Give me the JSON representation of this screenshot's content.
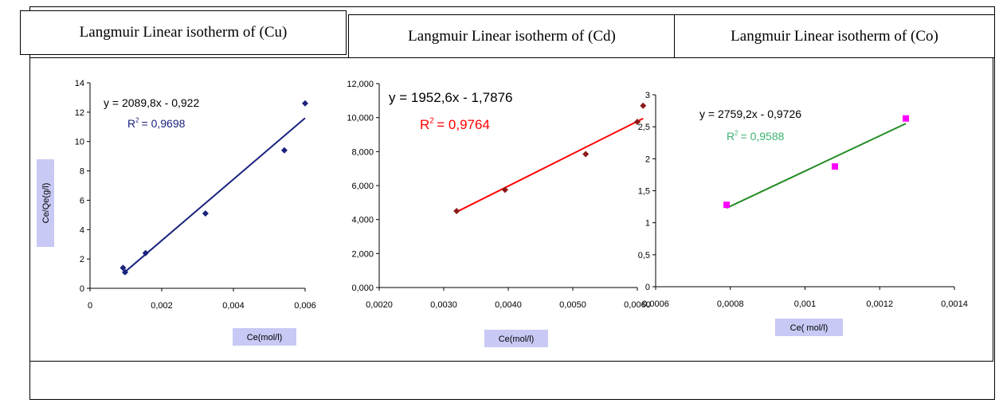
{
  "titles": {
    "cu": "Langmuir Linear isotherm of (Cu)",
    "cd": "Langmuir Linear isotherm of (Cd)",
    "co": "Langmuir Linear isotherm of (Co)"
  },
  "chart_data": [
    {
      "type": "scatter",
      "title": "Langmuir Linear isotherm of (Cu)",
      "xlabel": "Ce(mol/l)",
      "ylabel": "Ce/Qe(g/l)",
      "xlim": [
        0,
        0.006
      ],
      "ylim": [
        0,
        14
      ],
      "xticks": [
        0,
        0.002,
        0.004,
        0.006
      ],
      "xtick_labels": [
        "0",
        "0,002",
        "0,004",
        "0,006"
      ],
      "yticks": [
        0,
        2,
        4,
        6,
        8,
        10,
        12,
        14
      ],
      "ytick_labels": [
        "0",
        "2",
        "4",
        "6",
        "8",
        "10",
        "12",
        "14"
      ],
      "series": [
        {
          "x": [
            0.00092,
            0.00098,
            0.00155,
            0.00322,
            0.00542,
            0.006
          ],
          "y": [
            1.4,
            1.1,
            2.4,
            5.1,
            9.4,
            12.6
          ]
        }
      ],
      "trendline": {
        "x": [
          0.00092,
          0.006
        ],
        "y": [
          1.0,
          11.6
        ]
      },
      "equation": "y = 2089,8x - 0,922",
      "r2_label": "R",
      "r2_exponent": "2",
      "r2_value": "= 0,9698",
      "colors": {
        "marker": "#1a237e",
        "line": "#1a237e",
        "equation": "#000000",
        "r2": "#1a237e"
      }
    },
    {
      "type": "scatter",
      "title": "Langmuir Linear isotherm of (Cd)",
      "xlabel": "Ce(mol/l)",
      "xlim": [
        0.002,
        0.006
      ],
      "ylim": [
        0,
        12000
      ],
      "xticks": [
        0.002,
        0.003,
        0.004,
        0.005,
        0.006
      ],
      "xtick_labels": [
        "0,0020",
        "0,0030",
        "0,0040",
        "0,0050",
        "0,0060"
      ],
      "yticks": [
        0,
        2000,
        4000,
        6000,
        8000,
        10000,
        12000
      ],
      "ytick_labels": [
        "0,000",
        "2,000",
        "4,000",
        "6,000",
        "8,000",
        "10,000",
        "12,000"
      ],
      "series": [
        {
          "x": [
            0.0032,
            0.00395,
            0.0052,
            0.006,
            0.00609
          ],
          "y": [
            4500,
            5750,
            7850,
            9750,
            10700
          ]
        }
      ],
      "trendline": {
        "x": [
          0.0032,
          0.00609
        ],
        "y": [
          4450,
          9950
        ]
      },
      "equation": "y = 1952,6x - 1,7876",
      "r2_label": "R",
      "r2_exponent": "2",
      "r2_value": "= 0,9764",
      "colors": {
        "marker": "#8b1a1a",
        "line": "#ff0000",
        "equation": "#000000",
        "r2": "#ff0000"
      }
    },
    {
      "type": "scatter",
      "title": "Langmuir Linear isotherm of (Co)",
      "xlabel": "Ce( mol/l)",
      "xlim": [
        0.0006,
        0.0014
      ],
      "ylim": [
        0,
        3
      ],
      "xticks": [
        0.0006,
        0.0008,
        0.001,
        0.0012,
        0.0014
      ],
      "xtick_labels": [
        "0,0006",
        "0,0008",
        "0,001",
        "0,0012",
        "0,0014"
      ],
      "yticks": [
        0,
        0.5,
        1,
        1.5,
        2,
        2.5,
        3
      ],
      "ytick_labels": [
        "0",
        "0,5",
        "1",
        "1,5",
        "2",
        "2,5",
        "3"
      ],
      "series": [
        {
          "x": [
            0.00079,
            0.00108,
            0.00127
          ],
          "y": [
            1.28,
            1.88,
            2.63
          ]
        }
      ],
      "trendline": {
        "x": [
          0.00079,
          0.00127
        ],
        "y": [
          1.23,
          2.55
        ]
      },
      "equation": "y = 2759,2x - 0,9726",
      "r2_label": "R",
      "r2_exponent": "2",
      "r2_value": "= 0,9588",
      "colors": {
        "marker": "#ff00ff",
        "line": "#228b22",
        "equation": "#000000",
        "r2": "#3cb371"
      }
    }
  ]
}
